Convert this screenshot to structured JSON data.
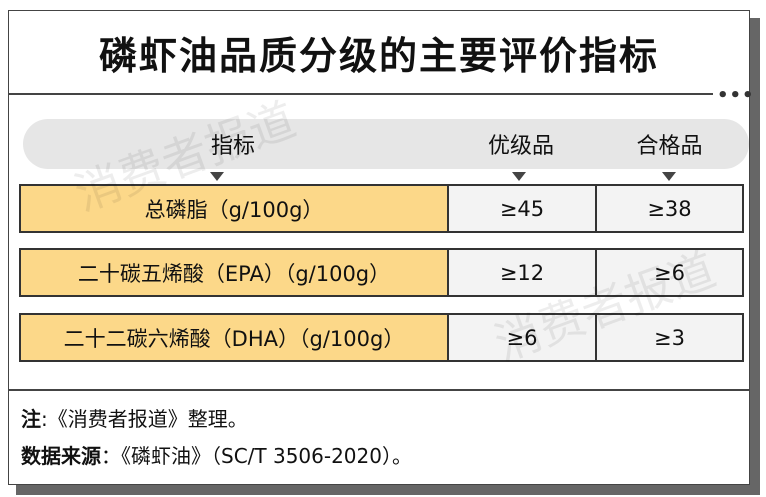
{
  "title": "磷虾油品质分级的主要评价指标",
  "watermark": "消费者报道",
  "table": {
    "headers": [
      "指标",
      "优级品",
      "合格品"
    ],
    "rows": [
      {
        "indicator": "总磷脂（g/100g）",
        "premium": "≥45",
        "qualified": "≥38"
      },
      {
        "indicator": "二十碳五烯酸（EPA）（g/100g）",
        "premium": "≥12",
        "qualified": "≥6"
      },
      {
        "indicator": "二十二碳六烯酸（DHA）（g/100g）",
        "premium": "≥6",
        "qualified": "≥3"
      }
    ]
  },
  "notes": {
    "note_label": "注",
    "note_text": ":《消费者报道》整理。",
    "source_label": "数据来源",
    "source_text": "：《磷虾油》（SC/T 3506-2020）。"
  },
  "colors": {
    "indicator_cell": "#fcd889",
    "value_cell": "#f3f3f3",
    "header_pill": "#e6e6e6"
  }
}
